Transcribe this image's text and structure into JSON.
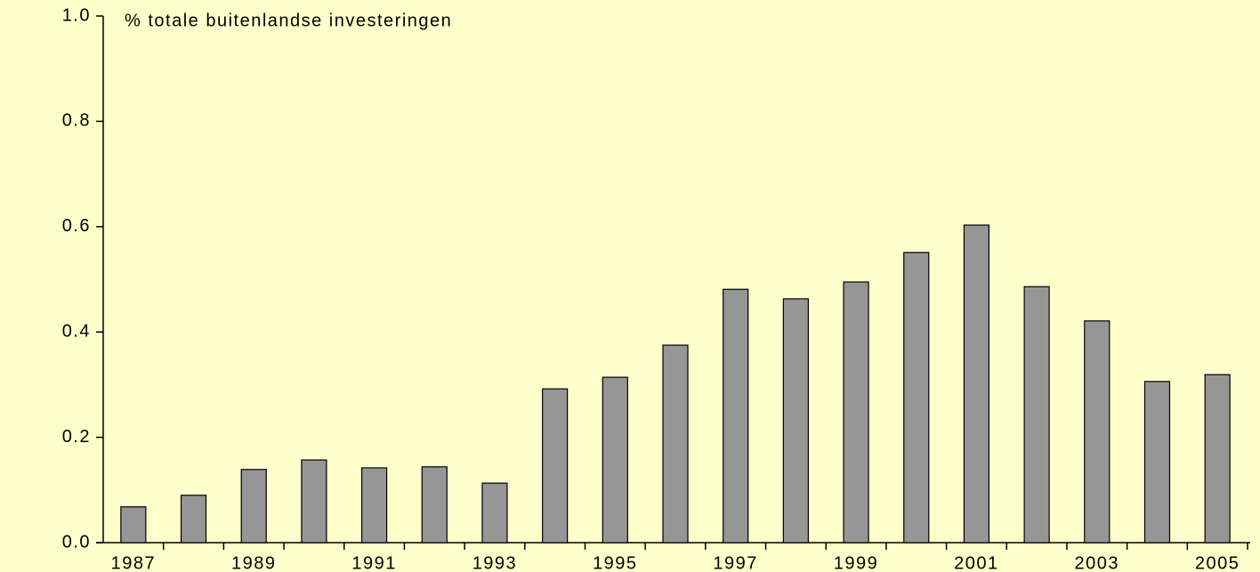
{
  "chart_data": {
    "type": "bar",
    "title": "% totale buitenlandse investeringen",
    "categories": [
      "1987",
      null,
      "1989",
      null,
      "1991",
      null,
      "1993",
      null,
      "1995",
      null,
      "1997",
      null,
      "1999",
      null,
      "2001",
      null,
      "2003",
      null,
      "2005"
    ],
    "values": [
      0.068,
      0.09,
      0.139,
      0.157,
      0.142,
      0.144,
      0.113,
      0.292,
      0.314,
      0.375,
      0.481,
      0.463,
      0.495,
      0.551,
      0.603,
      0.486,
      0.421,
      0.306,
      0.319
    ],
    "color": "#969696",
    "ylim": [
      0,
      1
    ],
    "yticks": [
      {
        "value": 0,
        "label": "0.0"
      },
      0.2,
      0.4,
      0.6,
      0.8,
      {
        "value": 1,
        "label": "1.0"
      }
    ],
    "grid": false
  }
}
